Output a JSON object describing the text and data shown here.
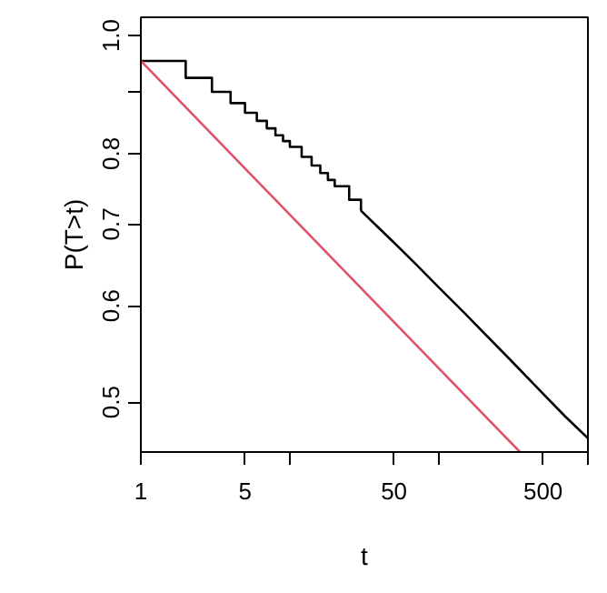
{
  "chart_data": {
    "type": "line",
    "xlabel": "t",
    "ylabel": "P(T>t)",
    "log": "xy",
    "xlim": [
      1,
      1000
    ],
    "ylim": [
      0.455,
      1.035
    ],
    "xticks": [
      1,
      5,
      {
        "value": 10,
        "label": null
      },
      50,
      {
        "value": 100,
        "label": null
      },
      500,
      {
        "value": 1000,
        "label": null
      }
    ],
    "yticks": [
      0.5,
      0.6,
      0.7,
      0.8,
      {
        "value": 0.9,
        "label": null
      },
      {
        "value": 1.0,
        "label": "1.0"
      }
    ],
    "grid": false,
    "series": [
      {
        "type": "step",
        "color": "#000000",
        "x": [
          1,
          2,
          3,
          4,
          5,
          6,
          7,
          8,
          9,
          10,
          12,
          14,
          16,
          18,
          20,
          25,
          30
        ],
        "values": [
          0.953,
          0.923,
          0.899,
          0.88,
          0.864,
          0.851,
          0.839,
          0.828,
          0.819,
          0.81,
          0.795,
          0.782,
          0.771,
          0.761,
          0.752,
          0.733,
          0.718
        ]
      },
      {
        "color": "#000000",
        "x": [
          30,
          40,
          50,
          70,
          100,
          150,
          200,
          300,
          500,
          700,
          1000
        ],
        "values": [
          0.718,
          0.694,
          0.676,
          0.649,
          0.621,
          0.591,
          0.57,
          0.542,
          0.508,
          0.487,
          0.467
        ]
      },
      {
        "color": "#df536b",
        "x": [
          1,
          350
        ],
        "values": [
          0.953,
          0.455
        ]
      }
    ]
  }
}
